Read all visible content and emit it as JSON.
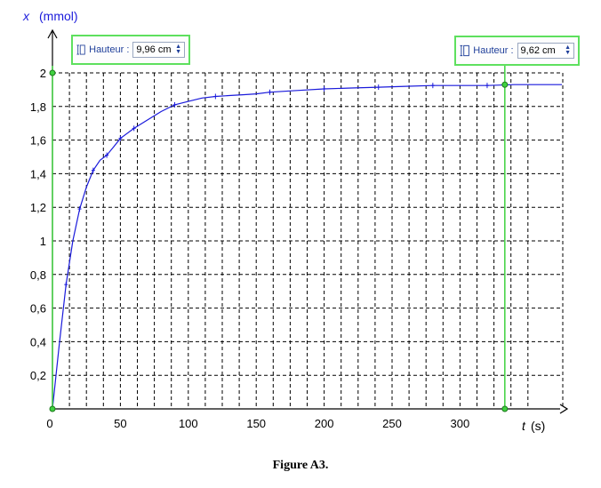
{
  "chart_data": {
    "type": "line",
    "x_axis": {
      "label": "t",
      "unit": "(s)",
      "ticks": [
        "0",
        "50",
        "100",
        "150",
        "200",
        "250",
        "300"
      ],
      "range": [
        0,
        375
      ],
      "grid_step": 12.5
    },
    "y_axis": {
      "label": "x",
      "unit": "(mmol)",
      "ticks": [
        "0,2",
        "0,4",
        "0,6",
        "0,8",
        "1",
        "1,2",
        "1,4",
        "1,6",
        "1,8",
        "2"
      ],
      "range": [
        0,
        2.2
      ],
      "grid_step": 0.2
    },
    "grid": true,
    "series": [
      {
        "color": "#1a1adb",
        "x": [
          0,
          5,
          10,
          15,
          20,
          25,
          30,
          35,
          40,
          45,
          50,
          60,
          70,
          80,
          90,
          100,
          110,
          120,
          130,
          140,
          150,
          160,
          180,
          200,
          220,
          240,
          260,
          280,
          300,
          320,
          340,
          375
        ],
        "y": [
          0,
          0.38,
          0.74,
          1.0,
          1.19,
          1.32,
          1.42,
          1.48,
          1.51,
          1.56,
          1.61,
          1.67,
          1.72,
          1.77,
          1.81,
          1.83,
          1.85,
          1.86,
          1.865,
          1.87,
          1.875,
          1.885,
          1.895,
          1.905,
          1.91,
          1.915,
          1.92,
          1.925,
          1.925,
          1.925,
          1.93,
          1.93
        ]
      }
    ],
    "markers_x": [
      10,
      20,
      30,
      40,
      50,
      60,
      90,
      120,
      160,
      200,
      240,
      280,
      320
    ]
  },
  "annotations": {
    "left_line": {
      "t": 0,
      "top_value": 2.0
    },
    "right_line": {
      "t": 333,
      "top_value": 1.93
    }
  },
  "height_boxes": [
    {
      "label": "Hauteur :",
      "value": "9,96 cm"
    },
    {
      "label": "Hauteur :",
      "value": "9,62 cm"
    }
  ],
  "caption": "Figure A3.",
  "colors": {
    "curve": "#1a1adb",
    "vertical_lines": "#3fd13f",
    "grid": "#000000"
  }
}
